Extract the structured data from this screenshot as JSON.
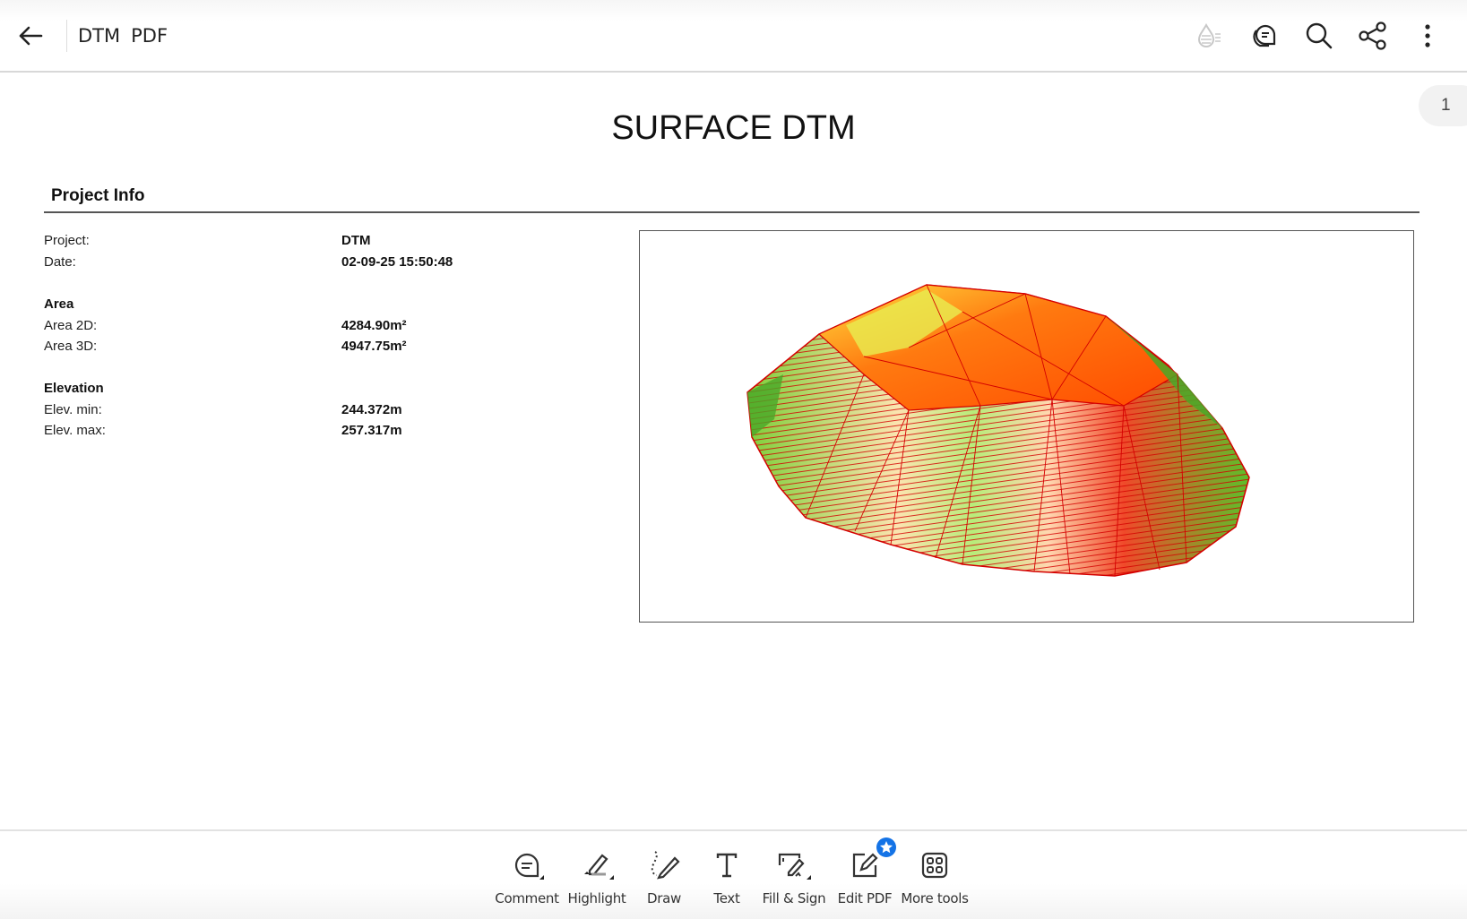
{
  "header": {
    "title": "DTM",
    "doc_type": "PDF",
    "icons": [
      "back-arrow-icon",
      "liquid-mode-icon",
      "comments-icon",
      "search-icon",
      "share-icon",
      "more-vertical-icon"
    ]
  },
  "page_indicator": "1",
  "document": {
    "title": "SURFACE DTM",
    "section": "Project Info",
    "rows": [
      {
        "label": "Project:",
        "value": "DTM"
      },
      {
        "label": "Date:",
        "value": "02-09-25 15:50:48"
      }
    ],
    "area": {
      "heading": "Area",
      "rows": [
        {
          "label": "Area 2D:",
          "value": "4284.90m²"
        },
        {
          "label": "Area 3D:",
          "value": "4947.75m²"
        }
      ]
    },
    "elevation": {
      "heading": "Elevation",
      "rows": [
        {
          "label": "Elev. min:",
          "value": "244.372m"
        },
        {
          "label": "Elev. max:",
          "value": "257.317m"
        }
      ]
    }
  },
  "colors": {
    "accent": "#1473e6",
    "terrain_high": "#ff5a00",
    "terrain_low": "#5cc02a",
    "mesh_lines": "#d40000"
  },
  "toolbar": [
    {
      "label": "Comment",
      "icon": "comment-icon"
    },
    {
      "label": "Highlight",
      "icon": "highlight-icon"
    },
    {
      "label": "Draw",
      "icon": "draw-icon"
    },
    {
      "label": "Text",
      "icon": "text-icon"
    },
    {
      "label": "Fill & Sign",
      "icon": "fill-sign-icon"
    },
    {
      "label": "Edit PDF",
      "icon": "edit-pdf-icon"
    },
    {
      "label": "More tools",
      "icon": "more-tools-icon"
    }
  ]
}
